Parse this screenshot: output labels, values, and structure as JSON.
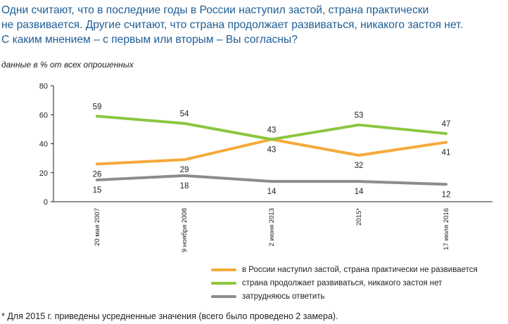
{
  "title_lines": [
    "Одни считают, что в последние годы в России наступил застой, страна практически",
    "не развивается. Другие считают, что страна продолжает развиваться, никакого застоя нет.",
    "С каким мнением – с первым или вторым – Вы согласны?"
  ],
  "subtitle": "данные в % от всех опрошенных",
  "footnote": "*  Для 2015 г. приведены усредненные значения (всего было проведено 2 замера).",
  "chart_data": {
    "type": "line",
    "categories": [
      "20 мая 2007",
      "9 ноября 2008",
      "2 июня 2013",
      "2015*",
      "17 июля 2016"
    ],
    "ylim": [
      0,
      80
    ],
    "yticks": [
      0,
      20,
      40,
      60,
      80
    ],
    "grid": false,
    "legend_position": "bottom-right",
    "series": [
      {
        "name": "в России наступил застой, страна практически не развивается",
        "color": "#f6a93b",
        "values": [
          26,
          29,
          43,
          32,
          41
        ]
      },
      {
        "name": "страна продолжает развиваться, никакого застоя нет",
        "color": "#8cc63f",
        "values": [
          59,
          54,
          43,
          53,
          47
        ]
      },
      {
        "name": "затрудняюсь ответить",
        "color": "#8c8c8c",
        "values": [
          15,
          18,
          14,
          14,
          12
        ]
      }
    ]
  }
}
